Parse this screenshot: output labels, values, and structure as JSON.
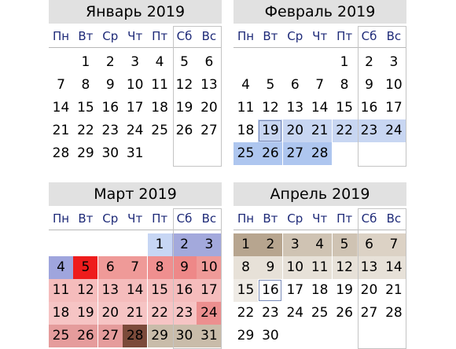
{
  "weekdays": [
    "Пн",
    "Вт",
    "Ср",
    "Чт",
    "Пт",
    "Сб",
    "Вс"
  ],
  "months": [
    {
      "title": "Январь 2019",
      "weeks": [
        [
          "",
          "1",
          "2",
          "3",
          "4",
          "5",
          "6"
        ],
        [
          "7",
          "8",
          "9",
          "10",
          "11",
          "12",
          "13"
        ],
        [
          "14",
          "15",
          "16",
          "17",
          "18",
          "19",
          "20"
        ],
        [
          "21",
          "22",
          "23",
          "24",
          "25",
          "26",
          "27"
        ],
        [
          "28",
          "29",
          "30",
          "31",
          "",
          "",
          ""
        ]
      ],
      "highlights": {}
    },
    {
      "title": "Февраль 2019",
      "weeks": [
        [
          "",
          "",
          "",
          "",
          "1",
          "2",
          "3"
        ],
        [
          "4",
          "5",
          "6",
          "7",
          "8",
          "9",
          "10"
        ],
        [
          "11",
          "12",
          "13",
          "14",
          "15",
          "16",
          "17"
        ],
        [
          "18",
          "19",
          "20",
          "21",
          "22",
          "23",
          "24"
        ],
        [
          "25",
          "26",
          "27",
          "28",
          "",
          "",
          ""
        ]
      ],
      "highlights": {
        "19": "#c8d6f2",
        "20": "#c8d6f2",
        "21": "#c8d6f2",
        "22": "#c8d6f2",
        "23": "#c8d6f2",
        "24": "#c8d6f2",
        "25": "#aec6ef",
        "26": "#aec6ef",
        "27": "#aec6ef",
        "28": "#aec6ef"
      },
      "today": "19"
    },
    {
      "title": "Март 2019",
      "weeks": [
        [
          "",
          "",
          "",
          "",
          "1",
          "2",
          "3"
        ],
        [
          "4",
          "5",
          "6",
          "7",
          "8",
          "9",
          "10"
        ],
        [
          "11",
          "12",
          "13",
          "14",
          "15",
          "16",
          "17"
        ],
        [
          "18",
          "19",
          "20",
          "21",
          "22",
          "23",
          "24"
        ],
        [
          "25",
          "26",
          "27",
          "28",
          "29",
          "30",
          "31"
        ]
      ],
      "highlights": {
        "1": "#c7d6f4",
        "2": "#a3a9dc",
        "3": "#a3a9dc",
        "4": "#9fa5dd",
        "5": "#ee1c1c",
        "6": "#ef9a98",
        "7": "#ef9a98",
        "8": "#ef8f8f",
        "9": "#ee8888",
        "10": "#ef9a98",
        "11": "#f5bcbc",
        "12": "#f5bcbc",
        "13": "#f5bcbc",
        "14": "#f5bcbc",
        "15": "#f5bcbc",
        "16": "#f5bcbc",
        "17": "#f5bcbc",
        "18": "#f6c4c4",
        "19": "#f6c4c4",
        "20": "#f6c4c4",
        "21": "#f6c4c4",
        "22": "#f6c4c4",
        "23": "#f6c4c4",
        "24": "#ec8f8f",
        "25": "#e59c9c",
        "26": "#e59c9c",
        "27": "#e59c9c",
        "28": "#7b4a3a",
        "29": "#c9bcaa",
        "30": "#c9bcaa",
        "31": "#c9bcaa"
      }
    },
    {
      "title": "Апрель 2019",
      "weeks": [
        [
          "1",
          "2",
          "3",
          "4",
          "5",
          "6",
          "7"
        ],
        [
          "8",
          "9",
          "10",
          "11",
          "12",
          "13",
          "14"
        ],
        [
          "15",
          "16",
          "17",
          "18",
          "19",
          "20",
          "21"
        ],
        [
          "22",
          "23",
          "24",
          "25",
          "26",
          "27",
          "28"
        ],
        [
          "29",
          "30",
          "",
          "",
          "",
          "",
          ""
        ]
      ],
      "highlights": {
        "1": "#b7a58f",
        "2": "#b7a58f",
        "3": "#cfc3b3",
        "4": "#cfc3b3",
        "5": "#cfc3b3",
        "6": "#dcd2c5",
        "7": "#dcd2c5",
        "8": "#e7e1d8",
        "9": "#e7e1d8",
        "10": "#e7e1d8",
        "11": "#e7e1d8",
        "12": "#e7e1d8",
        "13": "#e7e1d8",
        "14": "#e7e1d8",
        "15": "#efebe5"
      },
      "today": "16"
    }
  ]
}
